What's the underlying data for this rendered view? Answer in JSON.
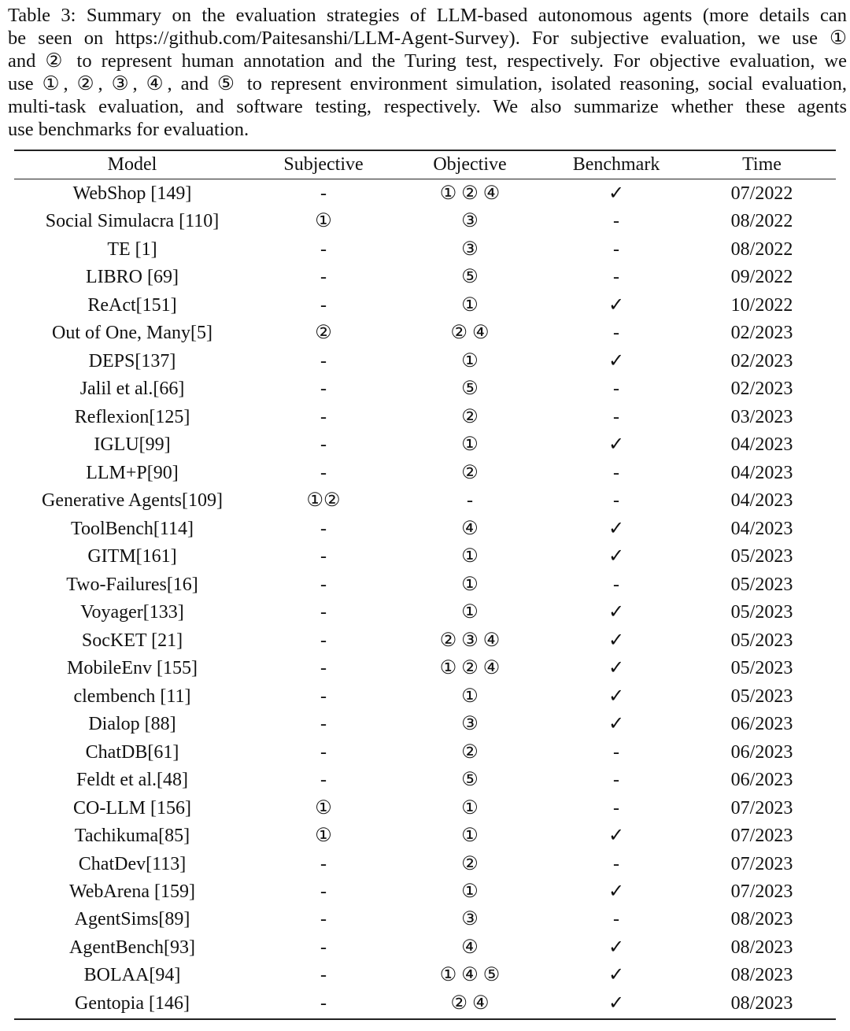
{
  "caption": {
    "lines": [
      "Table 3:  Summary on the evaluation strategies of LLM-based autonomous agents (more details can",
      "be seen on https://github.com/Paitesanshi/LLM-Agent-Survey). For subjective evaluation, we use ①",
      "and ② to represent human annotation and the Turing test, respectively. For objective evaluation, we",
      "use ①, ②, ③, ④, and ⑤ to represent environment simulation, isolated reasoning, social evaluation,",
      "multi-task evaluation, and software testing, respectively. We also summarize whether these agents",
      "use benchmarks for evaluation."
    ]
  },
  "table": {
    "header": [
      "Model",
      "Subjective",
      "Objective",
      "Benchmark",
      "Time"
    ],
    "rows": [
      [
        "WebShop [149]",
        "-",
        "① ② ④",
        "✓",
        "07/2022"
      ],
      [
        "Social Simulacra [110]",
        "①",
        "③",
        "-",
        "08/2022"
      ],
      [
        "TE [1]",
        "-",
        "③",
        "-",
        "08/2022"
      ],
      [
        "LIBRO [69]",
        "-",
        "⑤",
        "-",
        "09/2022"
      ],
      [
        "ReAct[151]",
        "-",
        "①",
        "✓",
        "10/2022"
      ],
      [
        "Out of One, Many[5]",
        "②",
        "② ④",
        "-",
        "02/2023"
      ],
      [
        "DEPS[137]",
        "-",
        "①",
        "✓",
        "02/2023"
      ],
      [
        "Jalil et al.[66]",
        "-",
        "⑤",
        "-",
        "02/2023"
      ],
      [
        "Reflexion[125]",
        "-",
        "②",
        "-",
        "03/2023"
      ],
      [
        "IGLU[99]",
        "-",
        "①",
        "✓",
        "04/2023"
      ],
      [
        "LLM+P[90]",
        "-",
        "②",
        "-",
        "04/2023"
      ],
      [
        "Generative Agents[109]",
        "①②",
        "-",
        "-",
        "04/2023"
      ],
      [
        "ToolBench[114]",
        "-",
        "④",
        "✓",
        "04/2023"
      ],
      [
        "GITM[161]",
        "-",
        "①",
        "✓",
        "05/2023"
      ],
      [
        "Two-Failures[16]",
        "-",
        "①",
        "-",
        "05/2023"
      ],
      [
        "Voyager[133]",
        "-",
        "①",
        "✓",
        "05/2023"
      ],
      [
        "SocKET [21]",
        "-",
        "② ③ ④",
        "✓",
        "05/2023"
      ],
      [
        "MobileEnv [155]",
        "-",
        "① ② ④",
        "✓",
        "05/2023"
      ],
      [
        "clembench [11]",
        "-",
        "①",
        "✓",
        "05/2023"
      ],
      [
        "Dialop [88]",
        "-",
        "③",
        "✓",
        "06/2023"
      ],
      [
        "ChatDB[61]",
        "-",
        "②",
        "-",
        "06/2023"
      ],
      [
        "Feldt et al.[48]",
        "-",
        "⑤",
        "-",
        "06/2023"
      ],
      [
        "CO-LLM [156]",
        "①",
        "①",
        "-",
        "07/2023"
      ],
      [
        "Tachikuma[85]",
        "①",
        "①",
        "✓",
        "07/2023"
      ],
      [
        "ChatDev[113]",
        "-",
        "②",
        "-",
        "07/2023"
      ],
      [
        "WebArena [159]",
        "-",
        "①",
        "✓",
        "07/2023"
      ],
      [
        "AgentSims[89]",
        "-",
        "③",
        "-",
        "08/2023"
      ],
      [
        "AgentBench[93]",
        "-",
        "④",
        "✓",
        "08/2023"
      ],
      [
        "BOLAA[94]",
        "-",
        "① ④ ⑤",
        "✓",
        "08/2023"
      ],
      [
        "Gentopia [146]",
        "-",
        "② ④",
        "✓",
        "08/2023"
      ]
    ]
  }
}
